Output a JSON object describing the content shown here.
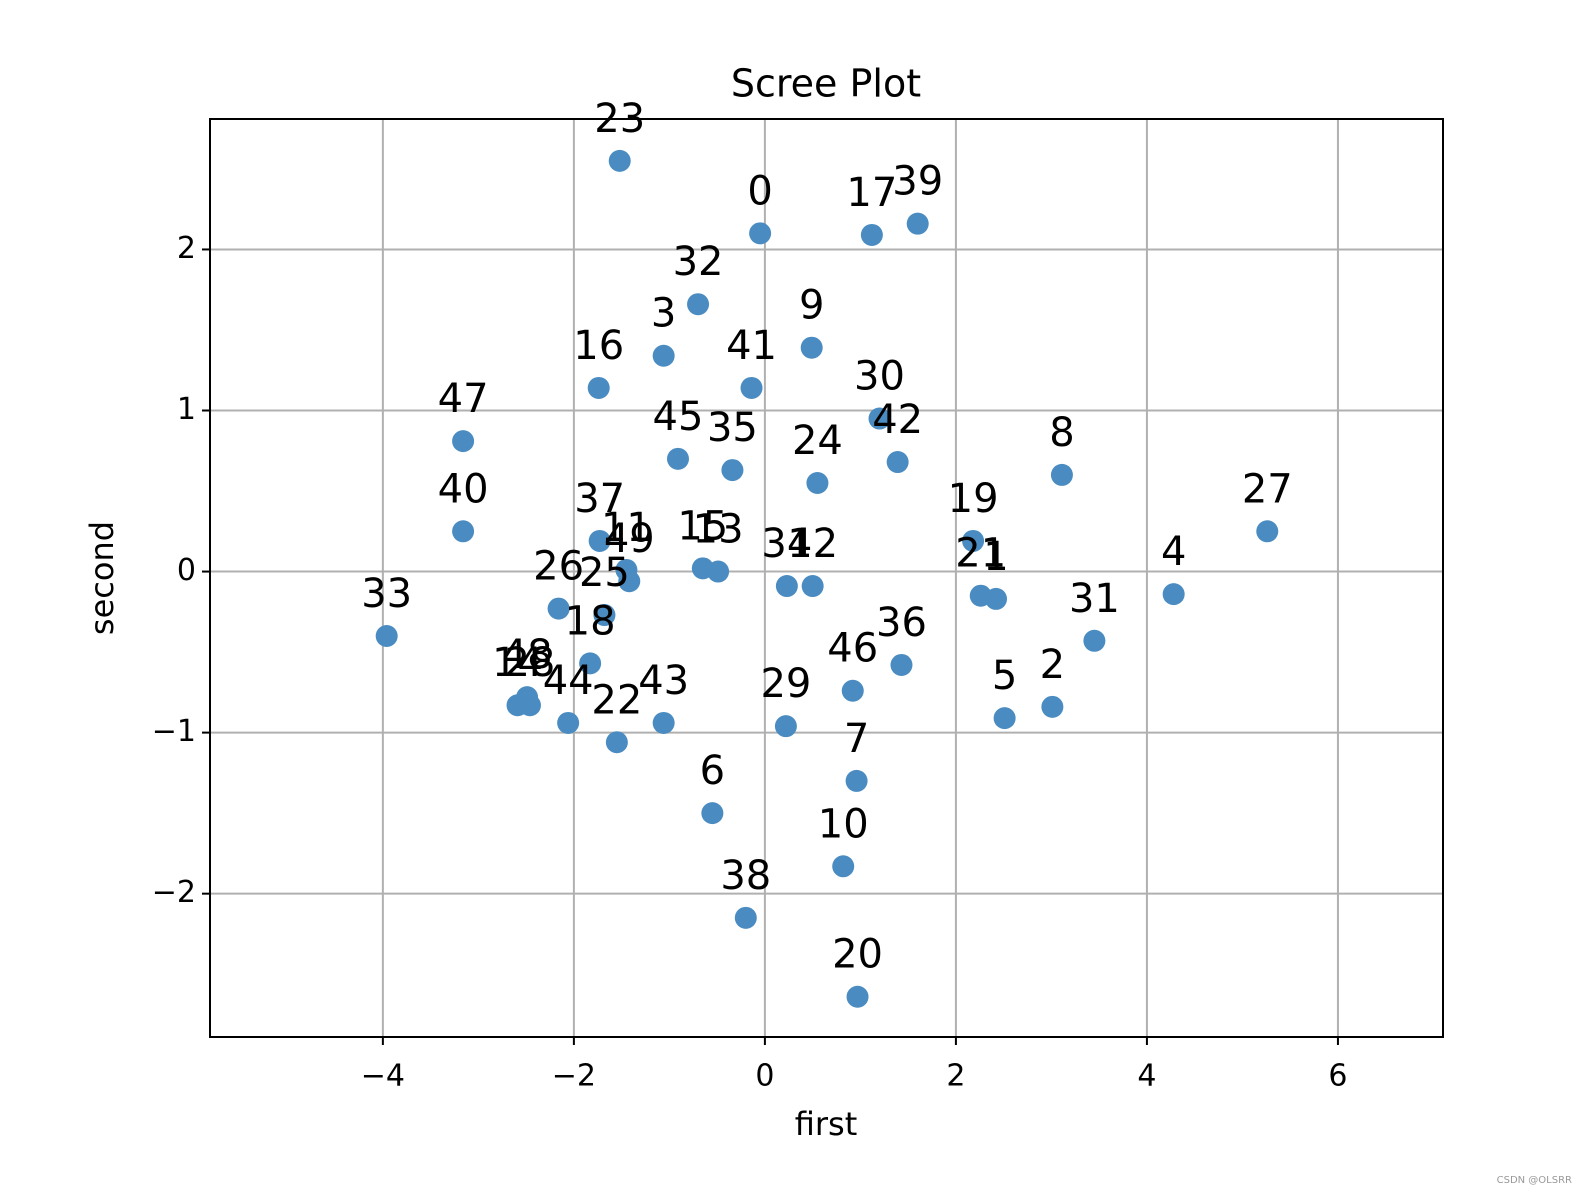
{
  "chart_data": {
    "type": "scatter",
    "title": "Scree Plot",
    "x_label": "first",
    "y_label": "second",
    "color": "#4a8cc1",
    "x": [
      -0.05,
      2.42,
      3.01,
      -1.06,
      4.28,
      2.51,
      -0.55,
      0.96,
      3.11,
      0.49,
      0.82,
      -1.45,
      0.5,
      -0.49,
      -2.59,
      -0.65,
      -1.74,
      1.12,
      -1.83,
      2.18,
      0.97,
      2.26,
      -1.55,
      -1.52,
      0.55,
      -1.68,
      -2.16,
      5.26,
      -2.46,
      0.22,
      1.2,
      3.45,
      -0.7,
      -3.96,
      0.23,
      -0.34,
      1.43,
      -1.73,
      -0.2,
      1.6,
      -3.16,
      -0.14,
      1.39,
      -1.06,
      -2.06,
      -0.91,
      0.92,
      -3.16,
      -2.49,
      -1.42
    ],
    "values": [
      2.1,
      -0.17,
      -0.84,
      1.34,
      -0.14,
      -0.91,
      -1.5,
      -1.3,
      0.6,
      1.39,
      -1.83,
      0.01,
      -0.09,
      0.0,
      -0.83,
      0.02,
      1.14,
      2.09,
      -0.57,
      0.19,
      -2.64,
      -0.15,
      -1.06,
      2.55,
      0.55,
      -0.27,
      -0.23,
      0.25,
      -0.83,
      -0.96,
      0.95,
      -0.43,
      1.66,
      -0.4,
      -0.09,
      0.63,
      -0.58,
      0.19,
      -2.15,
      2.16,
      0.25,
      1.14,
      0.68,
      -0.94,
      -0.94,
      0.7,
      -0.74,
      0.81,
      -0.78,
      -0.06
    ],
    "point_labels": [
      0,
      1,
      2,
      3,
      4,
      5,
      6,
      7,
      8,
      9,
      10,
      11,
      12,
      13,
      14,
      15,
      16,
      17,
      18,
      19,
      20,
      21,
      22,
      23,
      24,
      25,
      26,
      27,
      28,
      29,
      30,
      31,
      32,
      33,
      34,
      35,
      36,
      37,
      38,
      39,
      40,
      41,
      42,
      43,
      44,
      45,
      46,
      47,
      48,
      49
    ],
    "xlim": [
      -5.81,
      7.1
    ],
    "ylim": [
      -2.89,
      2.81
    ],
    "xticks": [
      {
        "value": -4,
        "label": "−4"
      },
      {
        "value": -2,
        "label": "−2"
      },
      0,
      2,
      4,
      6
    ],
    "yticks": [
      {
        "value": -2,
        "label": "−2"
      },
      {
        "value": -1,
        "label": "−1"
      },
      0,
      1,
      2
    ],
    "grid": true
  },
  "watermark": "CSDN @OLSRR"
}
